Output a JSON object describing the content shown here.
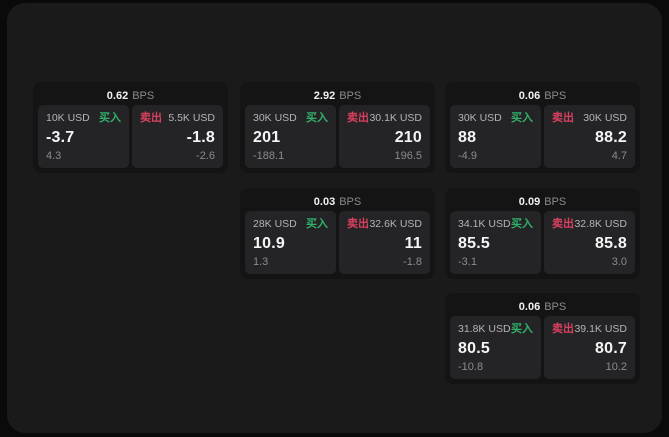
{
  "labels": {
    "bps_suffix": "BPS",
    "buy": "买入",
    "sell": "卖出"
  },
  "colors": {
    "background": "#0a0a0b",
    "panel": "#1a1a1b",
    "card": "#141415",
    "subpanel": "#242426",
    "buy_green": "#32b06a",
    "sell_red": "#d8405f",
    "text_primary": "#f5f5f6",
    "text_secondary": "#b4b4b6",
    "text_dim": "#8b8b8d"
  },
  "cards": [
    {
      "bps": "0.62",
      "buy": {
        "amount": "10K USD",
        "value": "-3.7",
        "sub": "4.3"
      },
      "sell": {
        "amount": "5.5K USD",
        "value": "-1.8",
        "sub": "-2.6"
      }
    },
    {
      "bps": "2.92",
      "buy": {
        "amount": "30K USD",
        "value": "201",
        "sub": "-188.1"
      },
      "sell": {
        "amount": "30.1K USD",
        "value": "210",
        "sub": "196.5"
      }
    },
    {
      "bps": "0.06",
      "buy": {
        "amount": "30K USD",
        "value": "88",
        "sub": "-4.9"
      },
      "sell": {
        "amount": "30K USD",
        "value": "88.2",
        "sub": "4.7"
      }
    },
    {
      "bps": "0.03",
      "buy": {
        "amount": "28K USD",
        "value": "10.9",
        "sub": "1.3"
      },
      "sell": {
        "amount": "32.6K USD",
        "value": "11",
        "sub": "-1.8"
      }
    },
    {
      "bps": "0.09",
      "buy": {
        "amount": "34.1K USD",
        "value": "85.5",
        "sub": "-3.1"
      },
      "sell": {
        "amount": "32.8K USD",
        "value": "85.8",
        "sub": "3.0"
      }
    },
    {
      "bps": "0.06",
      "buy": {
        "amount": "31.8K USD",
        "value": "80.5",
        "sub": "-10.8"
      },
      "sell": {
        "amount": "39.1K USD",
        "value": "80.7",
        "sub": "10.2"
      }
    }
  ]
}
